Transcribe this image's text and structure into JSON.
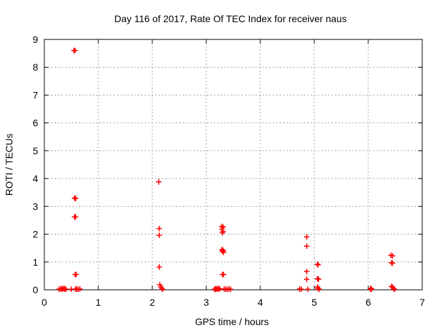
{
  "chart_data": {
    "type": "scatter",
    "title": "Day 116 of 2017, Rate Of TEC Index for receiver naus",
    "xlabel": "GPS time / hours",
    "ylabel": "ROTI / TECUs",
    "xlim": [
      0,
      7
    ],
    "ylim": [
      0,
      9
    ],
    "xticks": [
      "0",
      "1",
      "2",
      "3",
      "4",
      "5",
      "6",
      "7"
    ],
    "yticks": [
      "0",
      "1",
      "2",
      "3",
      "4",
      "5",
      "6",
      "7",
      "8",
      "9"
    ],
    "grid": true,
    "marker_color": "#ff0000",
    "points": [
      {
        "x": 0.27,
        "y": 0.02
      },
      {
        "x": 0.3,
        "y": 0.03
      },
      {
        "x": 0.32,
        "y": 0.04
      },
      {
        "x": 0.34,
        "y": 0.02
      },
      {
        "x": 0.36,
        "y": 0.05
      },
      {
        "x": 0.38,
        "y": 0.03
      },
      {
        "x": 0.4,
        "y": 0.02
      },
      {
        "x": 0.5,
        "y": 0.02
      },
      {
        "x": 0.55,
        "y": 8.6
      },
      {
        "x": 0.57,
        "y": 8.6
      },
      {
        "x": 0.56,
        "y": 3.3
      },
      {
        "x": 0.58,
        "y": 3.28
      },
      {
        "x": 0.56,
        "y": 2.62
      },
      {
        "x": 0.58,
        "y": 2.62
      },
      {
        "x": 0.57,
        "y": 0.55
      },
      {
        "x": 0.59,
        "y": 0.55
      },
      {
        "x": 0.58,
        "y": 0.03
      },
      {
        "x": 0.6,
        "y": 0.02
      },
      {
        "x": 0.63,
        "y": 0.02
      },
      {
        "x": 0.66,
        "y": 0.03
      },
      {
        "x": 2.12,
        "y": 3.88
      },
      {
        "x": 2.13,
        "y": 2.2
      },
      {
        "x": 2.13,
        "y": 1.96
      },
      {
        "x": 2.13,
        "y": 0.82
      },
      {
        "x": 2.14,
        "y": 0.18
      },
      {
        "x": 2.16,
        "y": 0.1
      },
      {
        "x": 2.18,
        "y": 0.04
      },
      {
        "x": 2.19,
        "y": 0.02
      },
      {
        "x": 3.15,
        "y": 0.02
      },
      {
        "x": 3.17,
        "y": 0.03
      },
      {
        "x": 3.19,
        "y": 0.04
      },
      {
        "x": 3.21,
        "y": 0.02
      },
      {
        "x": 3.23,
        "y": 0.05
      },
      {
        "x": 3.25,
        "y": 0.02
      },
      {
        "x": 3.29,
        "y": 2.28
      },
      {
        "x": 3.31,
        "y": 2.25
      },
      {
        "x": 3.29,
        "y": 2.18
      },
      {
        "x": 3.31,
        "y": 2.1
      },
      {
        "x": 3.3,
        "y": 2.05
      },
      {
        "x": 3.29,
        "y": 1.45
      },
      {
        "x": 3.31,
        "y": 1.42
      },
      {
        "x": 3.3,
        "y": 1.38
      },
      {
        "x": 3.32,
        "y": 1.35
      },
      {
        "x": 3.3,
        "y": 0.55
      },
      {
        "x": 3.32,
        "y": 0.55
      },
      {
        "x": 3.33,
        "y": 0.03
      },
      {
        "x": 3.36,
        "y": 0.02
      },
      {
        "x": 3.39,
        "y": 0.02
      },
      {
        "x": 3.42,
        "y": 0.03
      },
      {
        "x": 3.45,
        "y": 0.02
      },
      {
        "x": 4.73,
        "y": 0.03
      },
      {
        "x": 4.76,
        "y": 0.02
      },
      {
        "x": 4.86,
        "y": 1.9
      },
      {
        "x": 4.86,
        "y": 1.57
      },
      {
        "x": 4.86,
        "y": 0.66
      },
      {
        "x": 4.86,
        "y": 0.38
      },
      {
        "x": 4.88,
        "y": 0.02
      },
      {
        "x": 5.06,
        "y": 0.92
      },
      {
        "x": 5.07,
        "y": 0.9
      },
      {
        "x": 5.06,
        "y": 0.4
      },
      {
        "x": 5.08,
        "y": 0.38
      },
      {
        "x": 5.06,
        "y": 0.1
      },
      {
        "x": 5.07,
        "y": 0.05
      },
      {
        "x": 5.09,
        "y": 0.02
      },
      {
        "x": 6.04,
        "y": 0.03
      },
      {
        "x": 6.06,
        "y": 0.02
      },
      {
        "x": 6.05,
        "y": 0.05
      },
      {
        "x": 6.42,
        "y": 1.24
      },
      {
        "x": 6.45,
        "y": 1.22
      },
      {
        "x": 6.43,
        "y": 0.97
      },
      {
        "x": 6.45,
        "y": 0.96
      },
      {
        "x": 6.43,
        "y": 0.12
      },
      {
        "x": 6.45,
        "y": 0.1
      },
      {
        "x": 6.47,
        "y": 0.04
      },
      {
        "x": 6.49,
        "y": 0.02
      }
    ]
  }
}
